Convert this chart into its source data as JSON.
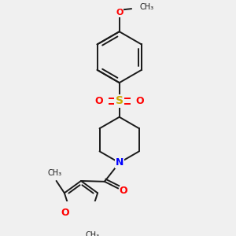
{
  "background_color": "#f0f0f0",
  "bond_color": "#1a1a1a",
  "N_color": "#0000ff",
  "O_color": "#ff0000",
  "S_color": "#ccaa00",
  "lw": 1.4,
  "figsize": [
    3.0,
    3.0
  ],
  "dpi": 100,
  "xlim": [
    0,
    300
  ],
  "ylim": [
    0,
    300
  ]
}
